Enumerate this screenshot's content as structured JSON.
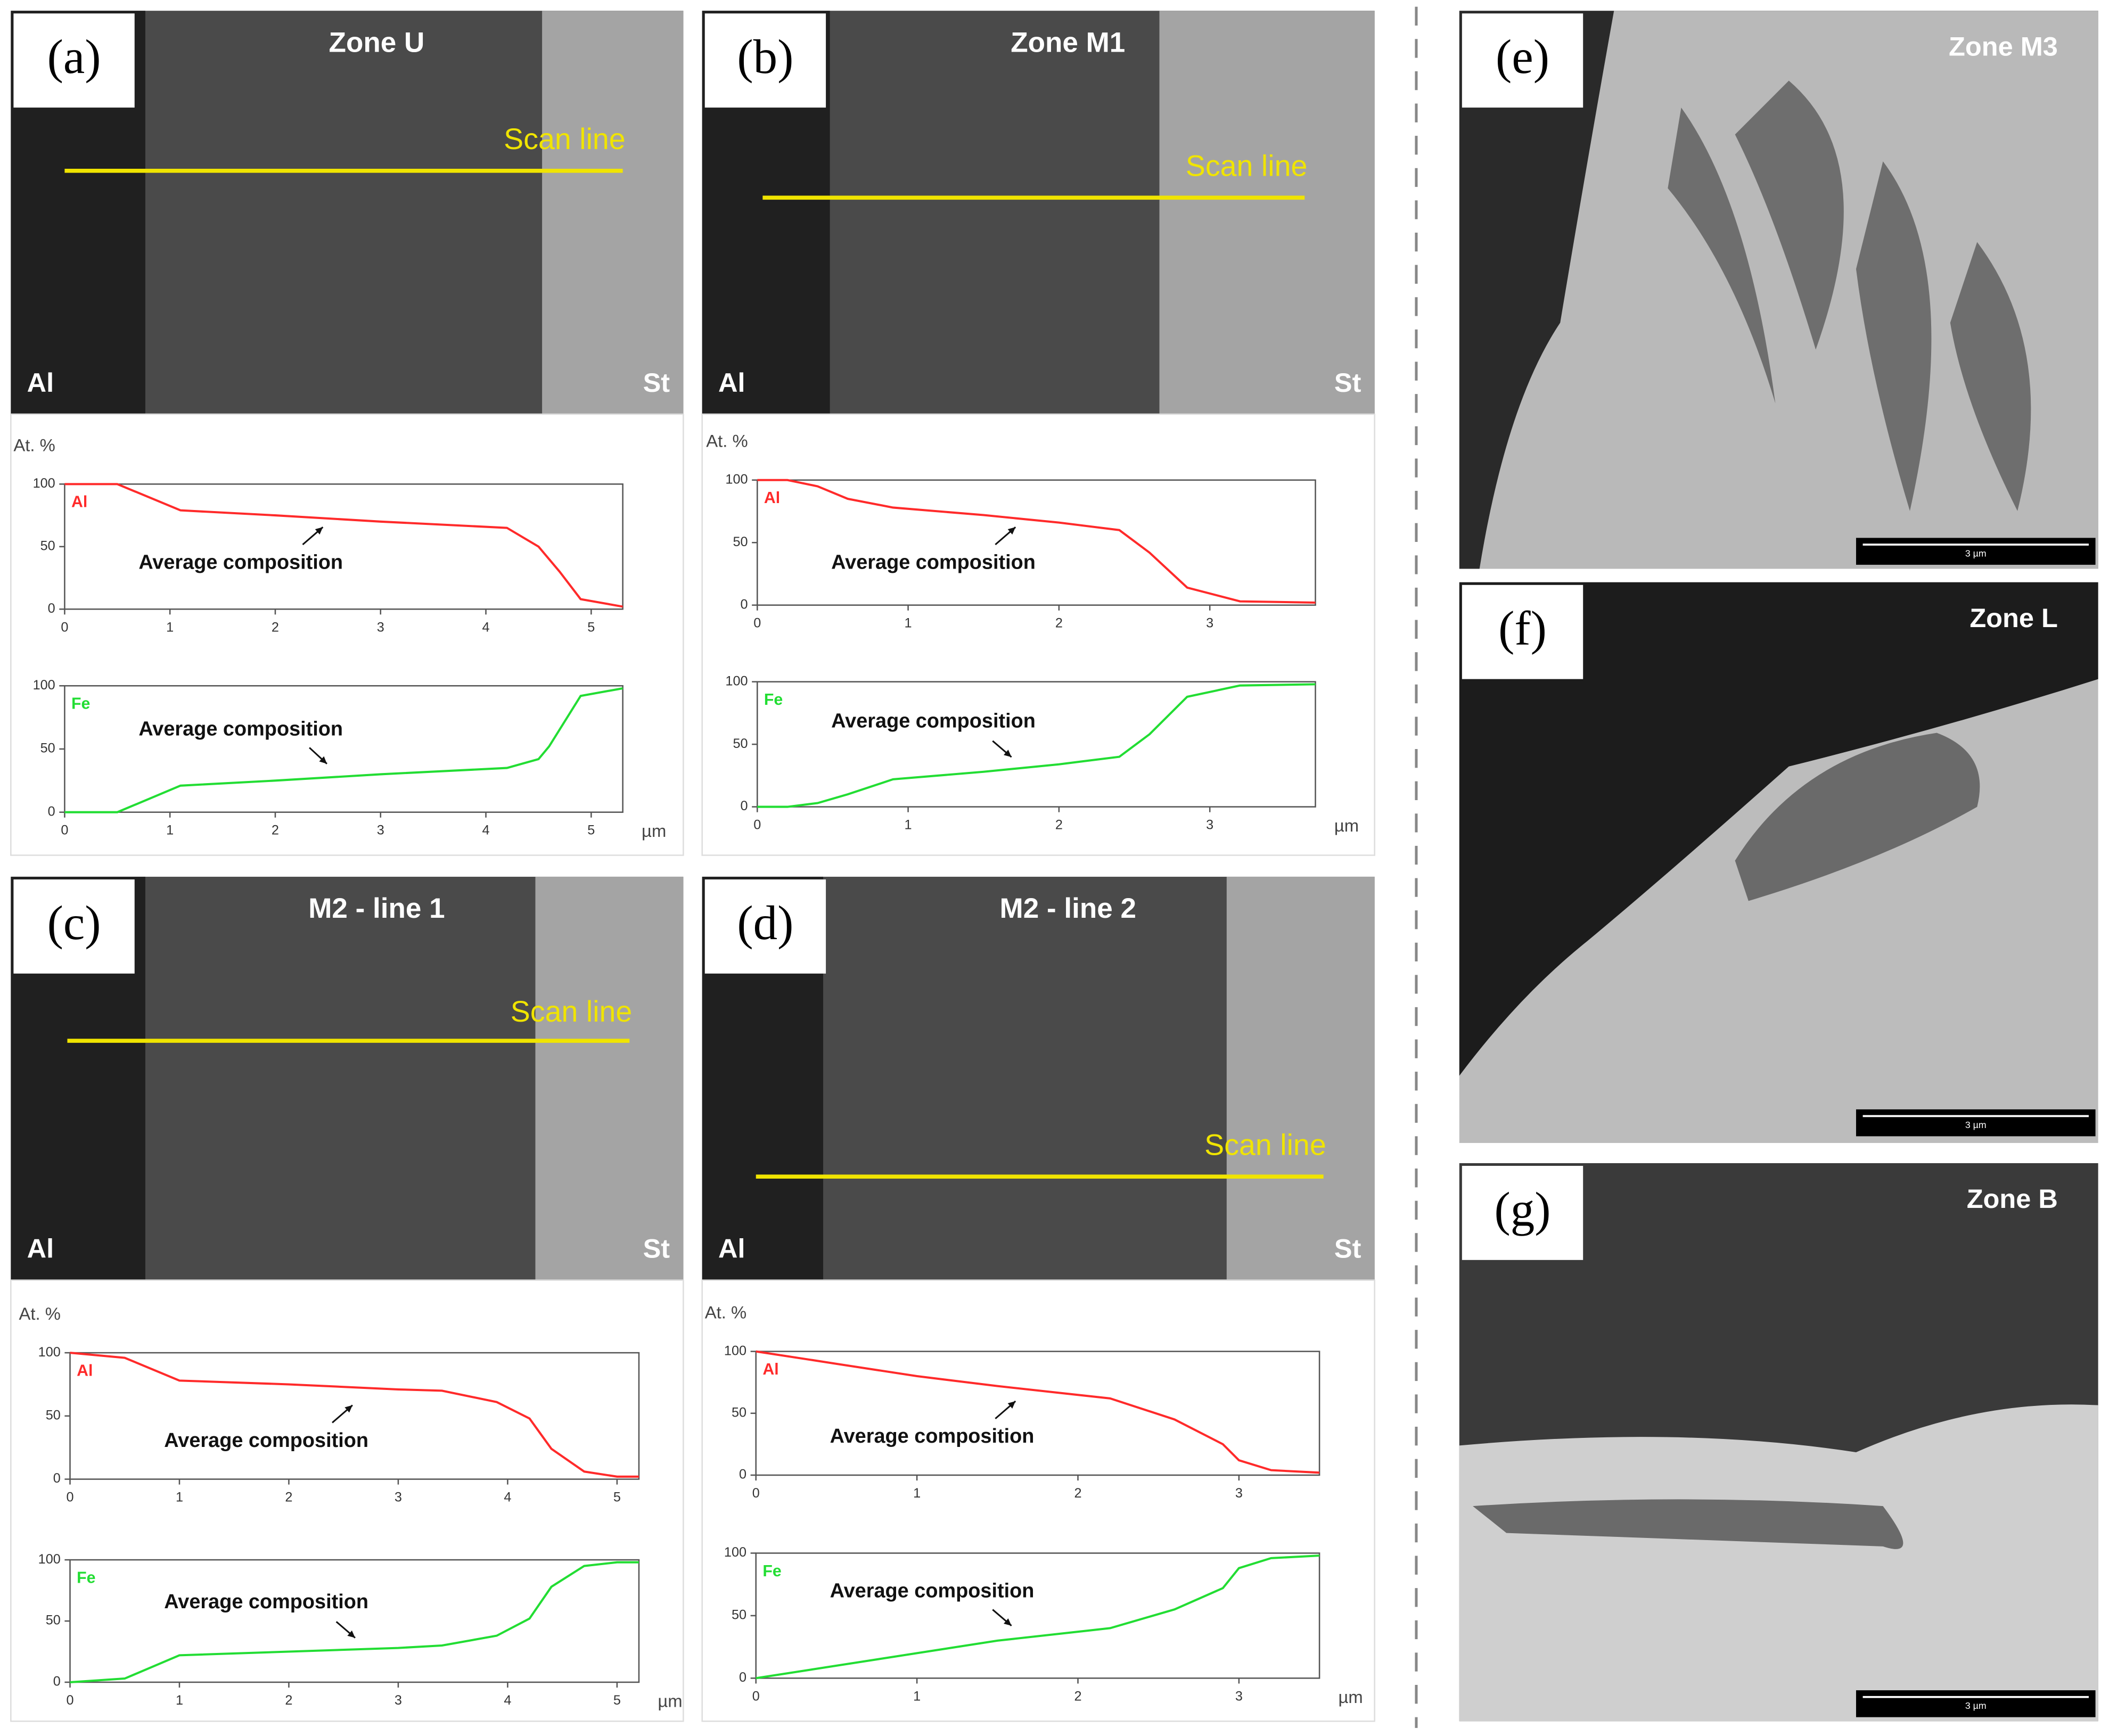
{
  "panels": [
    {
      "label": "(a)",
      "title": "Zone U",
      "scan": "Scan line",
      "left": "Al",
      "right": "St"
    },
    {
      "label": "(b)",
      "title": "Zone M1",
      "scan": "Scan line",
      "left": "Al",
      "right": "St"
    },
    {
      "label": "(c)",
      "title": "M2 - line 1",
      "scan": "Scan line",
      "left": "Al",
      "right": "St"
    },
    {
      "label": "(d)",
      "title": "M2 - line 2",
      "scan": "Scan line",
      "left": "Al",
      "right": "St"
    }
  ],
  "micrographs": [
    {
      "label": "(e)",
      "title": "Zone M3",
      "scale": "3 µm"
    },
    {
      "label": "(f)",
      "title": "Zone L",
      "scale": "3 µm"
    },
    {
      "label": "(g)",
      "title": "Zone B",
      "scale": "3 µm"
    }
  ],
  "chart_data": [
    {
      "type": "line",
      "ylabel": "At. %",
      "annotation": "Average composition",
      "x": [
        0,
        0.5,
        1.1,
        2,
        3,
        4.2,
        4.5,
        4.7,
        4.9,
        5.3
      ],
      "xlim": [
        0,
        5.3
      ],
      "xticks": [
        0,
        1,
        2,
        3,
        4,
        5
      ],
      "ylim": [
        0,
        100
      ],
      "yticks": [
        0,
        50,
        100
      ],
      "series": [
        {
          "name": "Al",
          "color": "#ff2a2a",
          "values": [
            100,
            100,
            79,
            75,
            70,
            65,
            50,
            30,
            8,
            2
          ]
        }
      ]
    },
    {
      "type": "line",
      "xlabel": "µm",
      "annotation": "Average composition",
      "x": [
        0,
        0.5,
        1.1,
        2,
        3,
        4.2,
        4.5,
        4.6,
        4.9,
        5.3
      ],
      "xlim": [
        0,
        5.3
      ],
      "xticks": [
        0,
        1,
        2,
        3,
        4,
        5
      ],
      "ylim": [
        0,
        100
      ],
      "yticks": [
        0,
        50,
        100
      ],
      "series": [
        {
          "name": "Fe",
          "color": "#22dd33",
          "values": [
            0,
            0,
            21,
            25,
            30,
            35,
            42,
            52,
            92,
            98
          ]
        }
      ]
    },
    {
      "type": "line",
      "ylabel": "At. %",
      "annotation": "Average composition",
      "x": [
        0,
        0.2,
        0.4,
        0.6,
        0.9,
        1.5,
        2,
        2.4,
        2.6,
        2.85,
        3.2,
        3.7
      ],
      "xlim": [
        0,
        3.7
      ],
      "xticks": [
        0,
        1,
        2,
        3
      ],
      "ylim": [
        0,
        100
      ],
      "yticks": [
        0,
        50,
        100
      ],
      "series": [
        {
          "name": "Al",
          "color": "#ff2a2a",
          "values": [
            100,
            100,
            95,
            85,
            78,
            72,
            66,
            60,
            42,
            14,
            3,
            2
          ]
        }
      ]
    },
    {
      "type": "line",
      "xlabel": "µm",
      "annotation": "Average composition",
      "x": [
        0,
        0.2,
        0.4,
        0.6,
        0.9,
        1.5,
        2,
        2.4,
        2.6,
        2.85,
        3.2,
        3.7
      ],
      "xlim": [
        0,
        3.7
      ],
      "xticks": [
        0,
        1,
        2,
        3
      ],
      "ylim": [
        0,
        100
      ],
      "yticks": [
        0,
        50,
        100
      ],
      "series": [
        {
          "name": "Fe",
          "color": "#22dd33",
          "values": [
            0,
            0,
            3,
            10,
            22,
            28,
            34,
            40,
            58,
            88,
            97,
            98
          ]
        }
      ]
    },
    {
      "type": "line",
      "ylabel": "At. %",
      "annotation": "Average composition",
      "x": [
        0,
        0.5,
        1,
        2,
        3,
        3.4,
        3.9,
        4.2,
        4.4,
        4.7,
        5,
        5.2
      ],
      "xlim": [
        0,
        5.2
      ],
      "xticks": [
        0,
        1,
        2,
        3,
        4,
        5
      ],
      "ylim": [
        0,
        100
      ],
      "yticks": [
        0,
        50,
        100
      ],
      "series": [
        {
          "name": "Al",
          "color": "#ff2a2a",
          "values": [
            100,
            96,
            78,
            75,
            71,
            70,
            61,
            48,
            24,
            6,
            2,
            2
          ]
        }
      ]
    },
    {
      "type": "line",
      "xlabel": "µm",
      "annotation": "Average composition",
      "x": [
        0,
        0.5,
        1,
        2,
        3,
        3.4,
        3.9,
        4.2,
        4.4,
        4.7,
        5,
        5.2
      ],
      "xlim": [
        0,
        5.2
      ],
      "xticks": [
        0,
        1,
        2,
        3,
        4,
        5
      ],
      "ylim": [
        0,
        100
      ],
      "yticks": [
        0,
        50,
        100
      ],
      "series": [
        {
          "name": "Fe",
          "color": "#22dd33",
          "values": [
            0,
            3,
            22,
            25,
            28,
            30,
            38,
            52,
            78,
            95,
            98,
            98
          ]
        }
      ]
    },
    {
      "type": "line",
      "ylabel": "At. %",
      "annotation": "Average composition",
      "x": [
        0,
        0.5,
        1,
        1.5,
        2.2,
        2.6,
        2.9,
        3,
        3.2,
        3.5
      ],
      "xlim": [
        0,
        3.5
      ],
      "xticks": [
        0,
        1,
        2,
        3
      ],
      "ylim": [
        0,
        100
      ],
      "yticks": [
        0,
        50,
        100
      ],
      "series": [
        {
          "name": "Al",
          "color": "#ff2a2a",
          "values": [
            100,
            90,
            80,
            72,
            62,
            45,
            25,
            12,
            4,
            2
          ]
        }
      ]
    },
    {
      "type": "line",
      "xlabel": "µm",
      "annotation": "Average composition",
      "x": [
        0,
        0.5,
        1,
        1.5,
        2.2,
        2.6,
        2.9,
        3,
        3.2,
        3.5
      ],
      "xlim": [
        0,
        3.5
      ],
      "xticks": [
        0,
        1,
        2,
        3
      ],
      "ylim": [
        0,
        100
      ],
      "yticks": [
        0,
        50,
        100
      ],
      "series": [
        {
          "name": "Fe",
          "color": "#22dd33",
          "values": [
            0,
            10,
            20,
            30,
            40,
            55,
            72,
            88,
            96,
            98
          ]
        }
      ]
    }
  ]
}
